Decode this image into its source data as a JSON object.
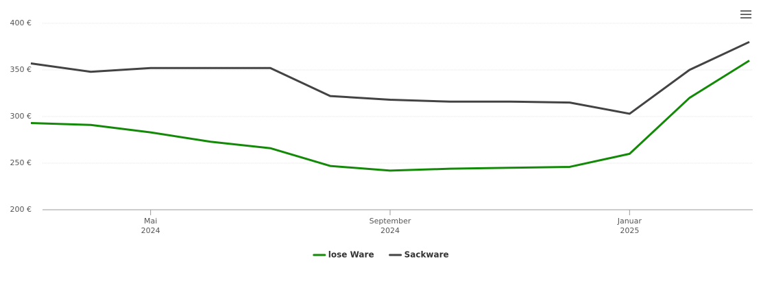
{
  "chart_data": {
    "type": "line",
    "x": [
      "2024-03",
      "2024-04",
      "2024-05",
      "2024-06",
      "2024-07",
      "2024-08",
      "2024-09",
      "2024-10",
      "2024-11",
      "2024-12",
      "2025-01",
      "2025-02",
      "2025-03"
    ],
    "xlim": [
      "2024-03",
      "2025-03"
    ],
    "xticks": [
      {
        "value": "2024-05",
        "label": "Mai",
        "year": "2024"
      },
      {
        "value": "2024-09",
        "label": "September",
        "year": "2024"
      },
      {
        "value": "2025-01",
        "label": "Januar",
        "year": "2025"
      }
    ],
    "ylim": [
      200,
      400
    ],
    "yticks": [
      {
        "value": 200,
        "label": "200 €"
      },
      {
        "value": 250,
        "label": "250 €"
      },
      {
        "value": 300,
        "label": "300 €"
      },
      {
        "value": 350,
        "label": "350 €"
      },
      {
        "value": 400,
        "label": "400 €"
      }
    ],
    "grid": true,
    "legend": "bottom",
    "series": [
      {
        "name": "lose Ware",
        "color": "#138a07",
        "values": [
          293,
          291,
          283,
          273,
          266,
          247,
          242,
          244,
          245,
          246,
          260,
          320,
          360
        ]
      },
      {
        "name": "Sackware",
        "color": "#434343",
        "values": [
          357,
          348,
          352,
          352,
          352,
          322,
          318,
          316,
          316,
          315,
          303,
          350,
          380
        ]
      }
    ]
  }
}
